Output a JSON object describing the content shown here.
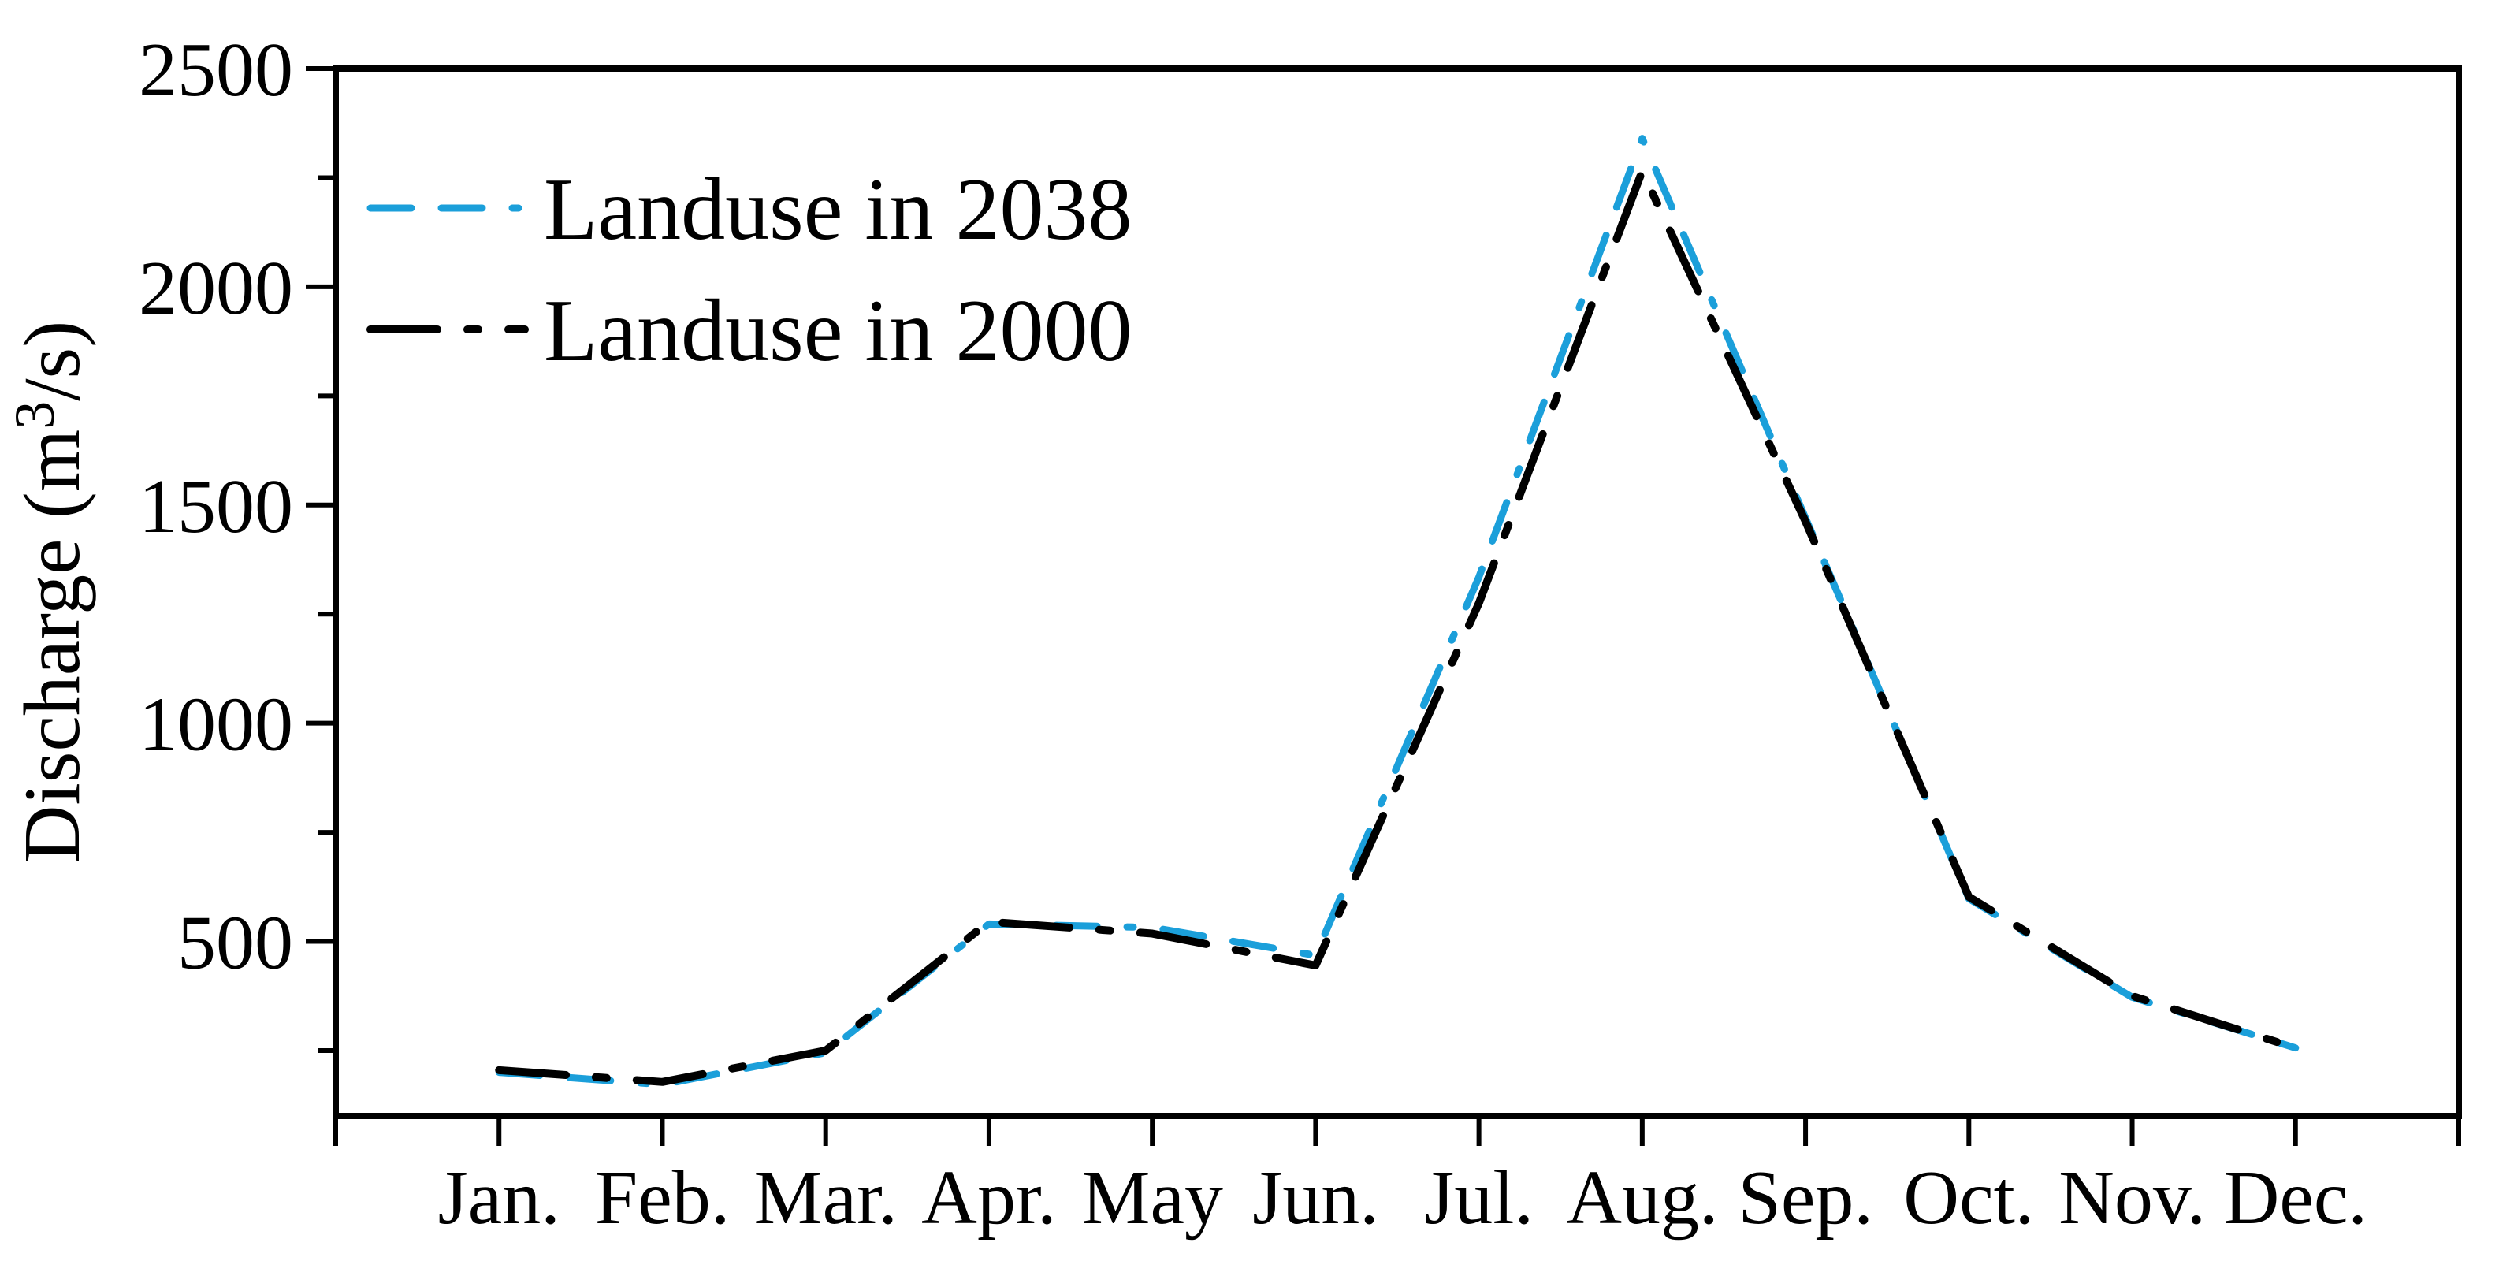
{
  "figure": {
    "background": "#ffffff",
    "axis_color": "#000000"
  },
  "y_axis": {
    "title": "Discharge (m³/s)",
    "title_prefix": "Discharge (m",
    "title_superscript": "3",
    "title_suffix": "/s)",
    "tick_labels": [
      "500",
      "1000",
      "1500",
      "2000",
      "2500"
    ]
  },
  "x_axis": {
    "tick_labels": [
      "Jan.",
      "Feb.",
      "Mar.",
      "Apr.",
      "May",
      "Jun.",
      "Jul.",
      "Aug.",
      "Sep.",
      "Oct.",
      "Nov.",
      "Dec."
    ]
  },
  "chart_data": {
    "type": "line",
    "title": "",
    "xlabel": "",
    "ylabel": "Discharge (m³/s)",
    "categories": [
      "Jan.",
      "Feb.",
      "Mar.",
      "Apr.",
      "May",
      "Jun.",
      "Jul.",
      "Aug.",
      "Sep.",
      "Oct.",
      "Nov.",
      "Dec."
    ],
    "ylim": [
      100,
      2500
    ],
    "yticks_major": [
      500,
      1000,
      1500,
      2000,
      2500
    ],
    "yticks_minor": [
      250,
      750,
      1250,
      1750,
      2250
    ],
    "grid": false,
    "legend_position": "upper-left-inside",
    "series": [
      {
        "name": "Landuse in 2038",
        "color": "#1b9fda",
        "line_style": "dash-dash-dot",
        "dash": [
          52,
          38,
          52,
          38,
          8,
          38
        ],
        "stroke_width": 9,
        "values": [
          200,
          172,
          245,
          540,
          532,
          468,
          1335,
          2340,
          1470,
          598,
          372,
          256
        ]
      },
      {
        "name": "Landuse in 2000",
        "color": "#000000",
        "line_style": "dash-dot",
        "dash": [
          85,
          38,
          14,
          38
        ],
        "stroke_width": 10,
        "values": [
          205,
          178,
          250,
          545,
          518,
          445,
          1275,
          2265,
          1462,
          602,
          375,
          256
        ]
      }
    ]
  }
}
